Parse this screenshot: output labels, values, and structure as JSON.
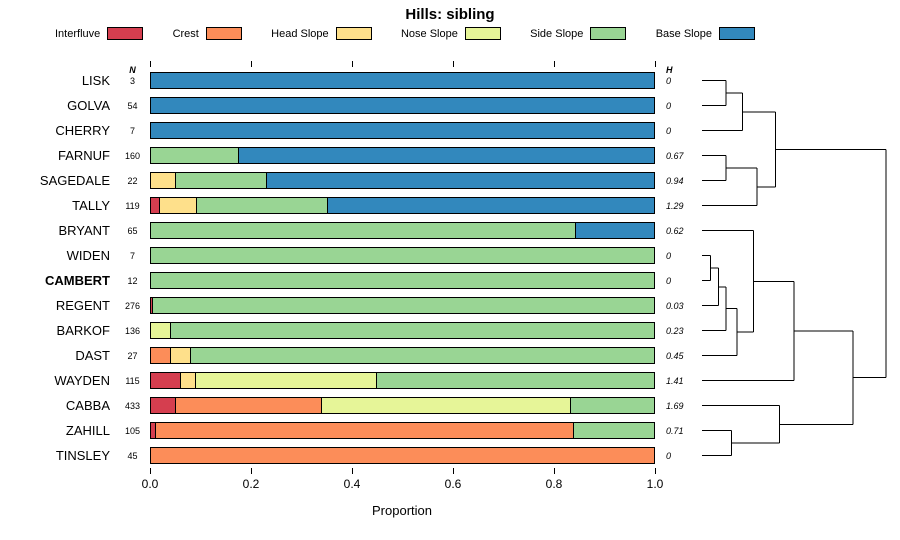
{
  "chart_data": {
    "type": "bar",
    "orientation": "horizontal",
    "stacked": true,
    "title": "Hills: sibling",
    "xlabel": "Proportion",
    "xlim": [
      0,
      1
    ],
    "x_ticks": [
      "0.0",
      "0.2",
      "0.4",
      "0.6",
      "0.8",
      "1.0"
    ],
    "grid": false,
    "legend_position": "top",
    "columns": {
      "n": "N",
      "h": "H"
    },
    "legend": [
      {
        "label": "Interfluve",
        "color": "#D53E4F"
      },
      {
        "label": "Crest",
        "color": "#FC8D59"
      },
      {
        "label": "Head Slope",
        "color": "#FEE08B"
      },
      {
        "label": "Nose Slope",
        "color": "#E6F598"
      },
      {
        "label": "Side Slope",
        "color": "#99D594"
      },
      {
        "label": "Base Slope",
        "color": "#3288BD"
      }
    ],
    "rows": [
      {
        "label": "LISK",
        "n": "3",
        "h": "0",
        "bold": false,
        "segments": [
          {
            "category": "Base Slope",
            "value": 1.0
          }
        ]
      },
      {
        "label": "GOLVA",
        "n": "54",
        "h": "0",
        "bold": false,
        "segments": [
          {
            "category": "Base Slope",
            "value": 1.0
          }
        ]
      },
      {
        "label": "CHERRY",
        "n": "7",
        "h": "0",
        "bold": false,
        "segments": [
          {
            "category": "Base Slope",
            "value": 1.0
          }
        ]
      },
      {
        "label": "FARNUF",
        "n": "160",
        "h": "0.67",
        "bold": false,
        "segments": [
          {
            "category": "Side Slope",
            "value": 0.175
          },
          {
            "category": "Base Slope",
            "value": 0.825
          }
        ]
      },
      {
        "label": "SAGEDALE",
        "n": "22",
        "h": "0.94",
        "bold": false,
        "segments": [
          {
            "category": "Head Slope",
            "value": 0.05
          },
          {
            "category": "Side Slope",
            "value": 0.18
          },
          {
            "category": "Base Slope",
            "value": 0.77
          }
        ]
      },
      {
        "label": "TALLY",
        "n": "119",
        "h": "1.29",
        "bold": false,
        "segments": [
          {
            "category": "Interfluve",
            "value": 0.017
          },
          {
            "category": "Head Slope",
            "value": 0.075
          },
          {
            "category": "Side Slope",
            "value": 0.26
          },
          {
            "category": "Base Slope",
            "value": 0.648
          }
        ]
      },
      {
        "label": "BRYANT",
        "n": "65",
        "h": "0.62",
        "bold": false,
        "segments": [
          {
            "category": "Side Slope",
            "value": 0.845
          },
          {
            "category": "Base Slope",
            "value": 0.155
          }
        ]
      },
      {
        "label": "WIDEN",
        "n": "7",
        "h": "0",
        "bold": false,
        "segments": [
          {
            "category": "Side Slope",
            "value": 1.0
          }
        ]
      },
      {
        "label": "CAMBERT",
        "n": "12",
        "h": "0",
        "bold": true,
        "segments": [
          {
            "category": "Side Slope",
            "value": 1.0
          }
        ]
      },
      {
        "label": "REGENT",
        "n": "276",
        "h": "0.03",
        "bold": false,
        "segments": [
          {
            "category": "Interfluve",
            "value": 0.004
          },
          {
            "category": "Side Slope",
            "value": 0.996
          }
        ]
      },
      {
        "label": "BARKOF",
        "n": "136",
        "h": "0.23",
        "bold": false,
        "segments": [
          {
            "category": "Nose Slope",
            "value": 0.04
          },
          {
            "category": "Side Slope",
            "value": 0.96
          }
        ]
      },
      {
        "label": "DAST",
        "n": "27",
        "h": "0.45",
        "bold": false,
        "segments": [
          {
            "category": "Crest",
            "value": 0.04
          },
          {
            "category": "Head Slope",
            "value": 0.04
          },
          {
            "category": "Side Slope",
            "value": 0.92
          }
        ]
      },
      {
        "label": "WAYDEN",
        "n": "115",
        "h": "1.41",
        "bold": false,
        "segments": [
          {
            "category": "Interfluve",
            "value": 0.06
          },
          {
            "category": "Head Slope",
            "value": 0.03
          },
          {
            "category": "Nose Slope",
            "value": 0.36
          },
          {
            "category": "Side Slope",
            "value": 0.55
          }
        ]
      },
      {
        "label": "CABBA",
        "n": "433",
        "h": "1.69",
        "bold": false,
        "segments": [
          {
            "category": "Interfluve",
            "value": 0.05
          },
          {
            "category": "Crest",
            "value": 0.29
          },
          {
            "category": "Nose Slope",
            "value": 0.495
          },
          {
            "category": "Side Slope",
            "value": 0.165
          }
        ]
      },
      {
        "label": "ZAHILL",
        "n": "105",
        "h": "0.71",
        "bold": false,
        "segments": [
          {
            "category": "Interfluve",
            "value": 0.01
          },
          {
            "category": "Crest",
            "value": 0.83
          },
          {
            "category": "Side Slope",
            "value": 0.16
          }
        ]
      },
      {
        "label": "TINSLEY",
        "n": "45",
        "h": "0",
        "bold": false,
        "segments": [
          {
            "category": "Crest",
            "value": 1.0
          }
        ]
      }
    ]
  },
  "dendrogram": {
    "max_height": 1.0,
    "tree": {
      "h": 1.0,
      "children": [
        {
          "h": 0.4,
          "children": [
            {
              "h": 0.22,
              "children": [
                {
                  "h": 0.13,
                  "children": [
                    {
                      "leaf": 0
                    },
                    {
                      "leaf": 1
                    }
                  ]
                },
                {
                  "leaf": 2
                }
              ]
            },
            {
              "h": 0.3,
              "children": [
                {
                  "h": 0.13,
                  "children": [
                    {
                      "leaf": 3
                    },
                    {
                      "leaf": 4
                    }
                  ]
                },
                {
                  "leaf": 5
                }
              ]
            }
          ]
        },
        {
          "h": 0.82,
          "children": [
            {
              "h": 0.5,
              "children": [
                {
                  "h": 0.28,
                  "children": [
                    {
                      "leaf": 6
                    },
                    {
                      "h": 0.19,
                      "children": [
                        {
                          "h": 0.13,
                          "children": [
                            {
                              "h": 0.09,
                              "children": [
                                {
                                  "h": 0.045,
                                  "children": [
                                    {
                                      "leaf": 7
                                    },
                                    {
                                      "leaf": 8
                                    }
                                  ]
                                },
                                {
                                  "leaf": 9
                                }
                              ]
                            },
                            {
                              "leaf": 10
                            }
                          ]
                        },
                        {
                          "leaf": 11
                        }
                      ]
                    }
                  ]
                },
                {
                  "leaf": 12
                }
              ]
            },
            {
              "h": 0.42,
              "children": [
                {
                  "leaf": 13
                },
                {
                  "h": 0.16,
                  "children": [
                    {
                      "leaf": 14
                    },
                    {
                      "leaf": 15
                    }
                  ]
                }
              ]
            }
          ]
        }
      ]
    }
  }
}
